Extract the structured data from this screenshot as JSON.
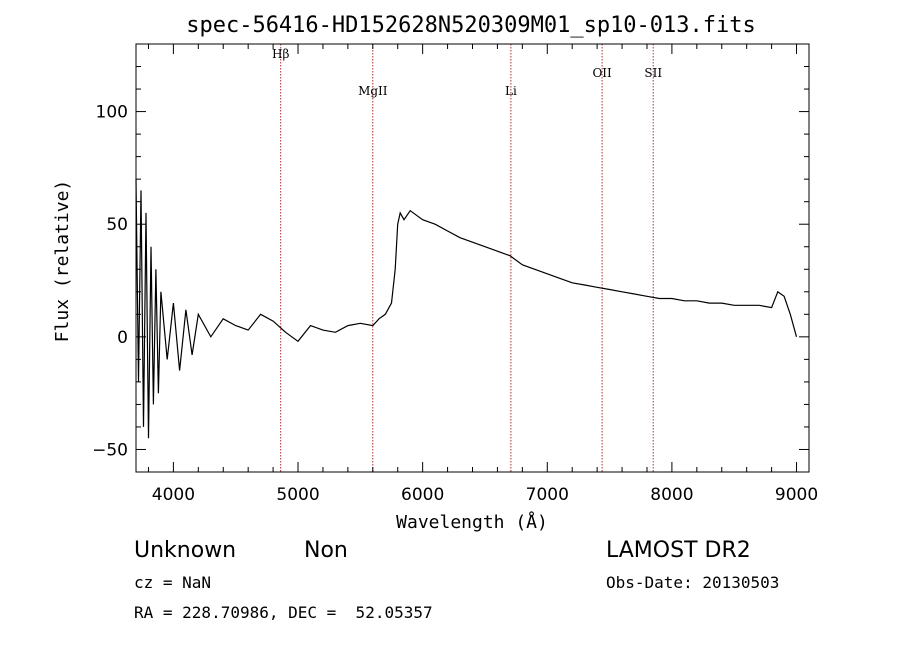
{
  "chart_data": {
    "type": "line",
    "title": "spec-56416-HD152628N520309M01_sp10-013.fits",
    "xlabel": "Wavelength (Å)",
    "ylabel": "Flux (relative)",
    "xlim": [
      3700,
      9100
    ],
    "ylim": [
      -60,
      130
    ],
    "xticks": [
      4000,
      5000,
      6000,
      7000,
      8000,
      9000
    ],
    "yticks": [
      -50,
      0,
      50,
      100
    ],
    "grid": false,
    "line_color": "#000000",
    "marker_color": "#b03030",
    "lines": [
      {
        "label": "Hβ",
        "x": 4861
      },
      {
        "label": "MgII",
        "x": 5600
      },
      {
        "label": "Li",
        "x": 6708
      },
      {
        "label": "OII",
        "x": 7440
      },
      {
        "label": "SII",
        "x": 7850
      }
    ],
    "series": [
      {
        "values_x": [
          3700,
          3720,
          3740,
          3760,
          3780,
          3800,
          3820,
          3840,
          3860,
          3880,
          3900,
          3950,
          4000,
          4050,
          4100,
          4150,
          4200,
          4300,
          4400,
          4500,
          4600,
          4700,
          4800,
          4900,
          5000,
          5100,
          5200,
          5300,
          5400,
          5500,
          5600,
          5650,
          5700,
          5750,
          5780,
          5800,
          5820,
          5850,
          5900,
          5950,
          6000,
          6100,
          6200,
          6300,
          6400,
          6500,
          6600,
          6700,
          6800,
          6900,
          7000,
          7100,
          7200,
          7300,
          7400,
          7500,
          7600,
          7700,
          7800,
          7900,
          8000,
          8100,
          8200,
          8300,
          8400,
          8500,
          8600,
          8700,
          8800,
          8850,
          8900,
          8950,
          9000
        ],
        "values_y": [
          70,
          -20,
          65,
          -40,
          55,
          -45,
          40,
          -30,
          30,
          -25,
          20,
          -10,
          15,
          -15,
          12,
          -8,
          10,
          0,
          8,
          5,
          3,
          10,
          7,
          2,
          -2,
          5,
          3,
          2,
          5,
          6,
          5,
          8,
          10,
          15,
          30,
          50,
          55,
          52,
          56,
          54,
          52,
          50,
          47,
          44,
          42,
          40,
          38,
          36,
          32,
          30,
          28,
          26,
          24,
          23,
          22,
          21,
          20,
          19,
          18,
          17,
          17,
          16,
          16,
          15,
          15,
          14,
          14,
          14,
          13,
          20,
          18,
          10,
          0
        ]
      }
    ]
  },
  "footer": {
    "object_class": "Unknown",
    "subclass": "Non",
    "survey": "LAMOST DR2",
    "redshift": "cz = NaN",
    "obs_date": "Obs-Date: 20130503",
    "coords": "RA = 228.70986, DEC =  52.05357"
  }
}
